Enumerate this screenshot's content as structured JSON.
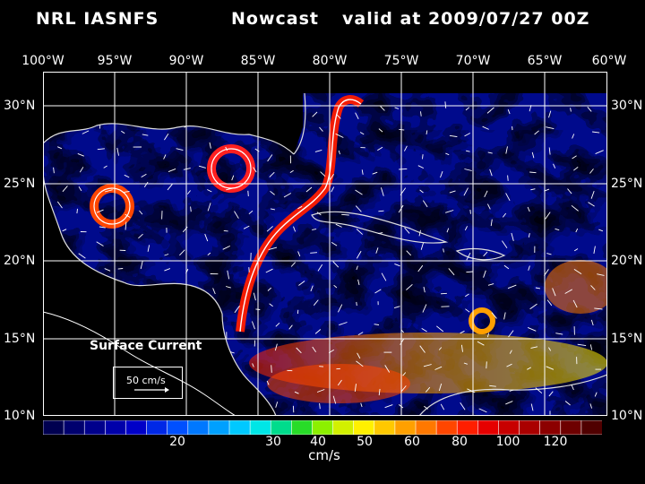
{
  "header": {
    "product": "NRL IASNFS",
    "mode": "Nowcast",
    "valid": "valid at 2009/07/27 00Z"
  },
  "axes": {
    "lon_labels": [
      "100°W",
      "95°W",
      "90°W",
      "85°W",
      "80°W",
      "75°W",
      "70°W",
      "65°W",
      "60°W"
    ],
    "lat_labels": [
      "30°N",
      "25°N",
      "20°N",
      "15°N",
      "10°N"
    ]
  },
  "legend": {
    "title": "Surface Current",
    "scale": "50 cm/s"
  },
  "colorbar": {
    "unit": "cm/s",
    "ticks": [
      "20",
      "30",
      "40",
      "50",
      "60",
      "80",
      "100",
      "120"
    ],
    "colors": [
      "#000050",
      "#00006e",
      "#00008c",
      "#0000aa",
      "#0000c8",
      "#0028e6",
      "#0050ff",
      "#0078ff",
      "#00a0ff",
      "#00c8ff",
      "#00e6e6",
      "#00dc8c",
      "#28dc28",
      "#8cf000",
      "#d2f000",
      "#fff000",
      "#ffc800",
      "#ffa000",
      "#ff7800",
      "#ff4600",
      "#ff1e00",
      "#e60000",
      "#c80000",
      "#aa0000",
      "#8c0000",
      "#6e0000",
      "#500000"
    ]
  },
  "colors": {
    "background": "#000000",
    "ocean_base": "#000a8c",
    "land": "#000000",
    "grid": "#ffffff",
    "eddy_ring": "#ff2020"
  }
}
